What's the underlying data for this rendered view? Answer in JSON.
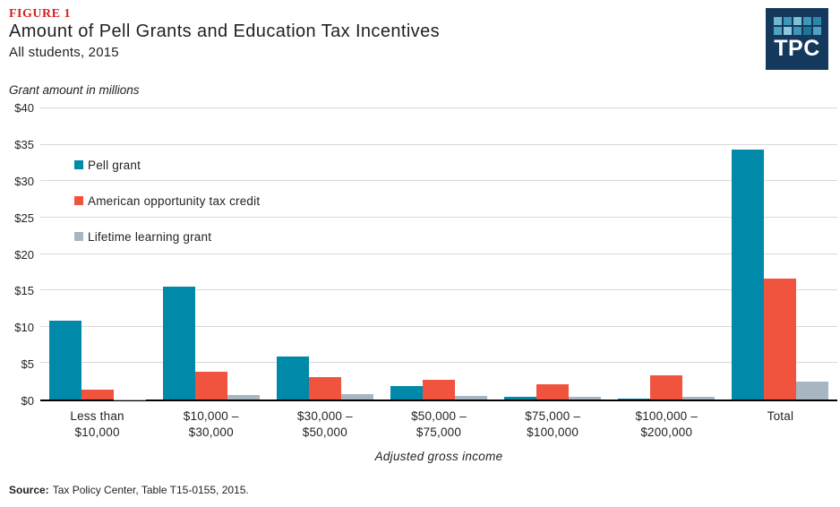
{
  "header": {
    "figure_label": "FIGURE 1",
    "title": "Amount of Pell Grants and Education Tax Incentives",
    "subtitle": "All students, 2015"
  },
  "logo": {
    "text": "TPC",
    "background": "#15395C",
    "tile_colors": [
      "#6FB7CC",
      "#3E96B8",
      "#7FC0D4",
      "#3E96B8",
      "#2E86AC",
      "#4EA3C2",
      "#8CC8DC",
      "#3E96B8",
      "#1D7697",
      "#4EA3C2"
    ]
  },
  "source": {
    "label": "Source:",
    "text": "Tax Policy Center, Table T15-0155, 2015."
  },
  "chart_data": {
    "type": "bar",
    "title": "Amount of Pell Grants and Education Tax Incentives",
    "subtitle": "All students, 2015",
    "ylabel": "Grant amount in millions",
    "xlabel": "Adjusted gross income",
    "ylim": [
      0,
      40
    ],
    "ytick_step": 5,
    "yticks": [
      "$40",
      "$35",
      "$30",
      "$25",
      "$20",
      "$15",
      "$10",
      "$5",
      "$0"
    ],
    "grid": true,
    "legend_position": "top-left-inside",
    "categories": [
      "Less than\n$10,000",
      "$10,000 –\n$30,000",
      "$30,000 –\n$50,000",
      "$50,000 –\n$75,000",
      "$75,000 –\n$100,000",
      "$100,000 –\n$200,000",
      "Total"
    ],
    "series": [
      {
        "name": "Pell grant",
        "color": "#0089A9",
        "values": [
          10.8,
          15.5,
          5.9,
          1.8,
          0.4,
          0.15,
          34.4
        ]
      },
      {
        "name": "American opportunity tax credit",
        "color": "#F0533E",
        "values": [
          1.4,
          3.8,
          3.1,
          2.7,
          2.1,
          3.3,
          16.6
        ]
      },
      {
        "name": "Lifetime learning grant",
        "color": "#A8B6C2",
        "values": [
          0.05,
          0.6,
          0.7,
          0.5,
          0.4,
          0.35,
          2.5
        ]
      }
    ]
  }
}
